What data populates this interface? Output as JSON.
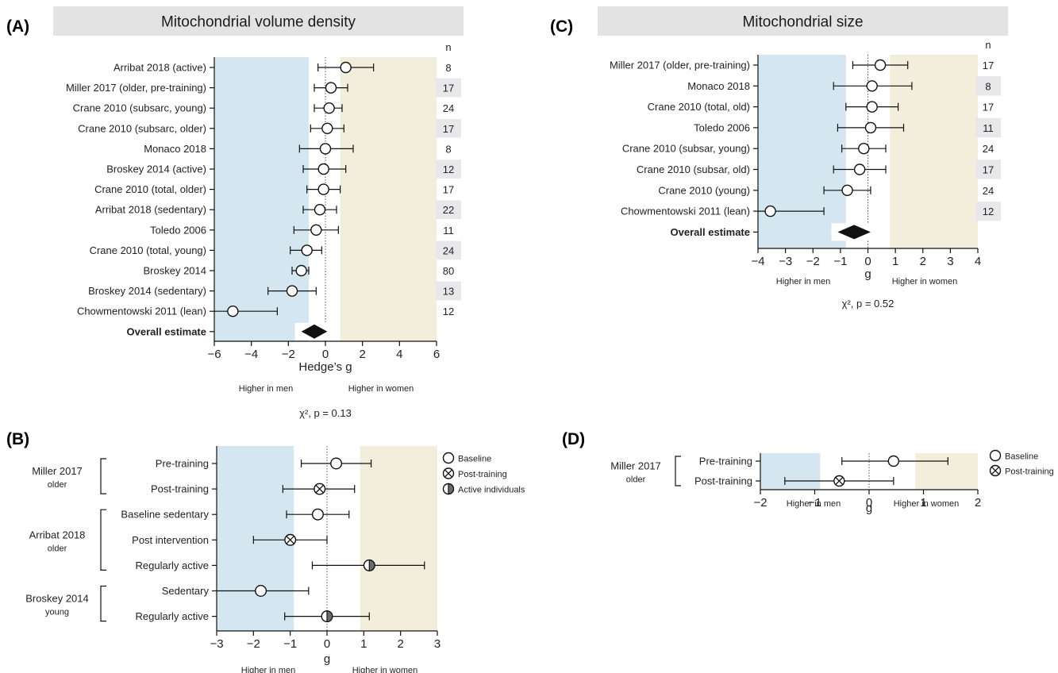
{
  "colors": {
    "men_band": "#d4e7f1",
    "women_band": "#f3eedb",
    "title_bar": "#e3e3e3",
    "n_shade": "#e8e8ea",
    "marker_fill": "#ffffff",
    "half_fill": "#6b6b6b",
    "ink": "#111111"
  },
  "chart_data": [
    {
      "id": "A",
      "panel_label": "(A)",
      "type": "forest",
      "title": "Mitochondrial volume density",
      "xlabel": "Hedge’s g",
      "xlim": [
        -6,
        6
      ],
      "ticks": [
        -6,
        -4,
        -2,
        0,
        2,
        4,
        6
      ],
      "men_label": "Higher in men",
      "women_label": "Higher in women",
      "stat": "χ², p = 0.13",
      "n_header": "n",
      "bands": {
        "men": [
          -6,
          -0.9
        ],
        "women": [
          0.8,
          6
        ]
      },
      "studies": [
        {
          "label": "Arribat 2018 (active)",
          "g": 1.1,
          "lo": -0.4,
          "hi": 2.6,
          "n": "8"
        },
        {
          "label": "Miller 2017 (older, pre-training)",
          "g": 0.3,
          "lo": -0.6,
          "hi": 1.2,
          "n": "17"
        },
        {
          "label": "Crane 2010 (subsarc, young)",
          "g": 0.2,
          "lo": -0.6,
          "hi": 0.9,
          "n": "24"
        },
        {
          "label": "Crane 2010 (subsarc, older)",
          "g": 0.1,
          "lo": -0.8,
          "hi": 1.0,
          "n": "17"
        },
        {
          "label": "Monaco 2018",
          "g": 0.0,
          "lo": -1.4,
          "hi": 1.5,
          "n": "8"
        },
        {
          "label": "Broskey 2014 (active)",
          "g": -0.1,
          "lo": -1.2,
          "hi": 1.1,
          "n": "12"
        },
        {
          "label": "Crane 2010 (total, older)",
          "g": -0.1,
          "lo": -1.0,
          "hi": 0.8,
          "n": "17"
        },
        {
          "label": "Arribat 2018 (sedentary)",
          "g": -0.3,
          "lo": -1.2,
          "hi": 0.6,
          "n": "22"
        },
        {
          "label": "Toledo 2006",
          "g": -0.5,
          "lo": -1.7,
          "hi": 0.7,
          "n": "11"
        },
        {
          "label": "Crane 2010 (total, young)",
          "g": -1.0,
          "lo": -1.9,
          "hi": -0.2,
          "n": "24"
        },
        {
          "label": "Broskey 2014",
          "g": -1.3,
          "lo": -1.8,
          "hi": -0.9,
          "n": "80"
        },
        {
          "label": "Broskey 2014 (sedentary)",
          "g": -1.8,
          "lo": -3.1,
          "hi": -0.5,
          "n": "13"
        },
        {
          "label": "Chowmentowski 2011 (lean)",
          "g": -5.0,
          "lo": -6.0,
          "hi": -2.6,
          "n": "12"
        }
      ],
      "overall": {
        "label": "Overall estimate",
        "g": -0.6,
        "lo": -1.3,
        "hi": 0.1
      }
    },
    {
      "id": "C",
      "panel_label": "(C)",
      "type": "forest",
      "title": "Mitochondrial size",
      "xlabel": "g",
      "xlim": [
        -4,
        4
      ],
      "ticks": [
        -4,
        -3,
        -2,
        -1,
        0,
        1,
        2,
        3,
        4
      ],
      "men_label": "Higher in men",
      "women_label": "Higher in women",
      "stat": "χ², p = 0.52",
      "n_header": "n",
      "bands": {
        "men": [
          -4,
          -0.8
        ],
        "women": [
          0.8,
          4
        ]
      },
      "studies": [
        {
          "label": "Miller 2017 (older, pre-training)",
          "g": 0.45,
          "lo": -0.55,
          "hi": 1.45,
          "n": "17"
        },
        {
          "label": "Monaco 2018",
          "g": 0.15,
          "lo": -1.25,
          "hi": 1.6,
          "n": "8"
        },
        {
          "label": "Crane 2010 (total, old)",
          "g": 0.15,
          "lo": -0.8,
          "hi": 1.1,
          "n": "17"
        },
        {
          "label": "Toledo 2006",
          "g": 0.1,
          "lo": -1.1,
          "hi": 1.3,
          "n": "11"
        },
        {
          "label": "Crane 2010 (subsar, young)",
          "g": -0.15,
          "lo": -0.95,
          "hi": 0.65,
          "n": "24"
        },
        {
          "label": "Crane 2010 (subsar, old)",
          "g": -0.3,
          "lo": -1.25,
          "hi": 0.65,
          "n": "17"
        },
        {
          "label": "Crane 2010 (young)",
          "g": -0.75,
          "lo": -1.6,
          "hi": 0.1,
          "n": "24"
        },
        {
          "label": "Chowmentowski 2011 (lean)",
          "g": -3.55,
          "lo": -4.0,
          "hi": -1.6,
          "n": "12"
        }
      ],
      "overall": {
        "label": "Overall estimate",
        "g": -0.5,
        "lo": -1.1,
        "hi": 0.1
      }
    },
    {
      "id": "B",
      "panel_label": "(B)",
      "type": "forest",
      "xlabel": "g",
      "xlim": [
        -3,
        3
      ],
      "ticks": [
        -3,
        -2,
        -1,
        0,
        1,
        2,
        3
      ],
      "men_label": "Higher in men",
      "women_label": "Higher in women",
      "bands": {
        "men": [
          -3,
          -0.9
        ],
        "women": [
          0.9,
          3
        ]
      },
      "groups": [
        {
          "name": "Miller 2017",
          "sub": "older"
        },
        {
          "name": "Arribat 2018",
          "sub": "older"
        },
        {
          "name": "Broskey 2014",
          "sub": "young"
        }
      ],
      "rows": [
        {
          "label": "Pre-training",
          "g": 0.25,
          "lo": -0.7,
          "hi": 1.2,
          "marker": "baseline"
        },
        {
          "label": "Post-training",
          "g": -0.2,
          "lo": -1.2,
          "hi": 0.75,
          "marker": "post"
        },
        {
          "label": "Baseline sedentary",
          "g": -0.25,
          "lo": -1.1,
          "hi": 0.6,
          "marker": "baseline"
        },
        {
          "label": "Post intervention",
          "g": -1.0,
          "lo": -2.0,
          "hi": 0.0,
          "marker": "post"
        },
        {
          "label": "Regularly active",
          "g": 1.15,
          "lo": -0.4,
          "hi": 2.65,
          "marker": "active"
        },
        {
          "label": "Sedentary",
          "g": -1.8,
          "lo": -3.0,
          "hi": -0.5,
          "marker": "baseline"
        },
        {
          "label": "Regularly active",
          "g": 0.0,
          "lo": -1.15,
          "hi": 1.15,
          "marker": "active"
        }
      ],
      "legend": [
        {
          "label": "Baseline",
          "marker": "baseline"
        },
        {
          "label": "Post-training",
          "marker": "post"
        },
        {
          "label": "Active individuals",
          "marker": "active"
        }
      ]
    },
    {
      "id": "D",
      "panel_label": "(D)",
      "type": "forest",
      "xlabel": "g",
      "xlim": [
        -2,
        2
      ],
      "ticks": [
        -2,
        -1,
        0,
        1,
        2
      ],
      "men_label": "Higher in men",
      "women_label": "Higher in women",
      "bands": {
        "men": [
          -2,
          -0.9
        ],
        "women": [
          0.85,
          2
        ]
      },
      "groups": [
        {
          "name": "Miller 2017",
          "sub": "older"
        }
      ],
      "rows": [
        {
          "label": "Pre-training",
          "g": 0.45,
          "lo": -0.5,
          "hi": 1.45,
          "marker": "baseline"
        },
        {
          "label": "Post-training",
          "g": -0.55,
          "lo": -1.55,
          "hi": 0.45,
          "marker": "post"
        }
      ],
      "legend": [
        {
          "label": "Baseline",
          "marker": "baseline"
        },
        {
          "label": "Post-training",
          "marker": "post"
        }
      ]
    }
  ]
}
